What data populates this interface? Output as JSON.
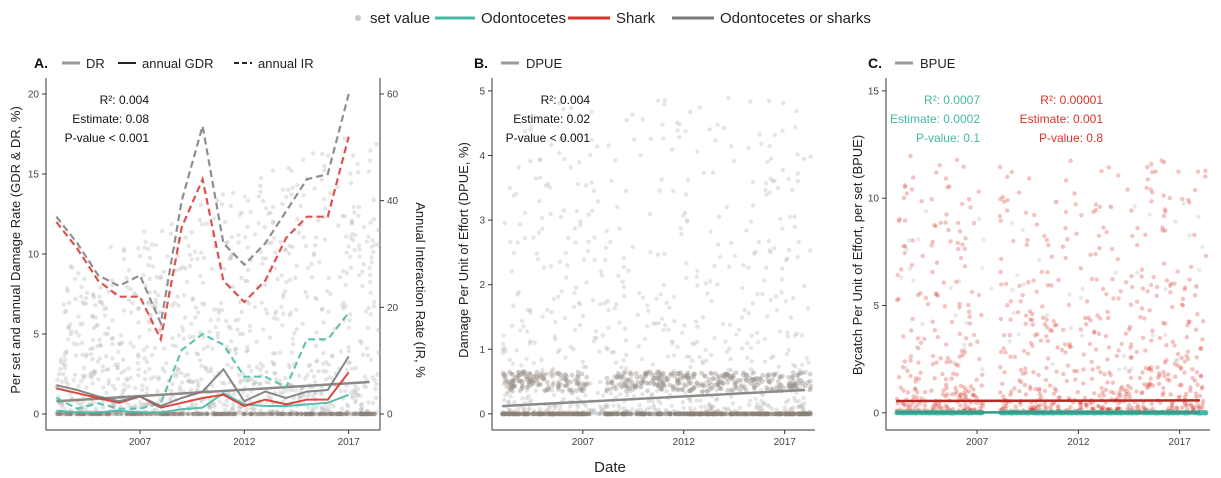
{
  "legend": {
    "set_value": "set value",
    "odontocetes": "Odontocetes",
    "shark": "Shark",
    "combined": "Odontocetes or sharks"
  },
  "colors": {
    "odontocetes": "#47b8a6",
    "shark": "#d9342b",
    "combined": "#7a7a7a",
    "points_gray": "#b5b5b5",
    "points_red": "#d9342b",
    "points_teal": "#47b8a6",
    "zero_points": "#8c8177",
    "trend_gray": "#8f8a86"
  },
  "x_axis_label": "Date",
  "chart_data": [
    {
      "panel": "A.",
      "type": "line",
      "legend_entries": [
        "DR",
        "annual GDR",
        "annual IR"
      ],
      "ylabel": "Per set and annual Damage Rate (GDR & DR, %)",
      "ylabel_right": "Annual Interaction Rate (IR, %",
      "xlim": [
        2002.5,
        2018.5
      ],
      "ylim": [
        -1,
        21
      ],
      "y_ticks": [
        0,
        5,
        10,
        15,
        20
      ],
      "y2_ticks": [
        0,
        20,
        40,
        60
      ],
      "x_ticks": [
        2007,
        2012,
        2017
      ],
      "stats": [
        "R²: 0.004",
        "Estimate: 0.08",
        "P-value < 0.001"
      ],
      "x": [
        2003,
        2004,
        2005,
        2006,
        2007,
        2008,
        2009,
        2010,
        2011,
        2012,
        2013,
        2014,
        2015,
        2016,
        2017
      ],
      "gdr_series": [
        {
          "name": "Odontocetes",
          "values": [
            0.2,
            0.1,
            0.1,
            0.2,
            0.1,
            0.1,
            0.3,
            0.4,
            1.3,
            0.6,
            0.5,
            0.5,
            0.6,
            0.7,
            1.2
          ]
        },
        {
          "name": "Shark",
          "values": [
            1.6,
            1.3,
            1.0,
            0.7,
            1.1,
            0.4,
            0.7,
            1.0,
            1.2,
            0.5,
            0.9,
            0.6,
            0.9,
            0.9,
            2.6
          ]
        },
        {
          "name": "Odontocetes or sharks",
          "values": [
            1.8,
            1.5,
            1.1,
            0.8,
            1.1,
            0.5,
            1.0,
            1.4,
            2.8,
            0.8,
            1.4,
            1.0,
            1.4,
            1.5,
            3.6
          ]
        }
      ],
      "ir_series": [
        {
          "name": "Odontocetes",
          "values": [
            3,
            1,
            2,
            1,
            1,
            2,
            12,
            15,
            13,
            7,
            7,
            5,
            14,
            14,
            19
          ]
        },
        {
          "name": "Shark",
          "values": [
            36,
            31,
            25,
            22,
            22,
            14,
            35,
            44,
            25,
            21,
            25,
            33,
            37,
            37,
            52
          ]
        },
        {
          "name": "Odontocetes or sharks",
          "values": [
            37,
            32,
            26,
            24,
            26,
            17,
            40,
            54,
            32,
            28,
            32,
            38,
            44,
            45,
            60
          ]
        }
      ],
      "trend": {
        "x": [
          2003,
          2018
        ],
        "y": [
          0.8,
          2.0
        ]
      },
      "points_ymax": 18
    },
    {
      "panel": "B.",
      "type": "scatter",
      "legend_entries": [
        "DPUE"
      ],
      "ylabel": "Damage Per Unit of Effort (DPUE, %)",
      "xlim": [
        2002.5,
        2018.5
      ],
      "ylim": [
        -0.25,
        5.2
      ],
      "y_ticks": [
        0,
        1,
        2,
        3,
        4,
        5
      ],
      "x_ticks": [
        2007,
        2012,
        2017
      ],
      "stats": [
        "R²: 0.004",
        "Estimate: 0.02",
        "P-value < 0.001"
      ],
      "trend": {
        "x": [
          2003,
          2018
        ],
        "y": [
          0.12,
          0.37
        ]
      },
      "points_ymax": 4.9
    },
    {
      "panel": "C.",
      "type": "scatter",
      "legend_entries": [
        "BPUE"
      ],
      "ylabel": "Bycatch Per Unit of Effort, per set (BPUE)",
      "xlim": [
        2002.5,
        2018.5
      ],
      "ylim": [
        -0.8,
        15.6
      ],
      "y_ticks": [
        0,
        5,
        10,
        15
      ],
      "x_ticks": [
        2007,
        2012,
        2017
      ],
      "stats_odontocetes": [
        "R²: 0.0007",
        "Estimate: 0.0002",
        "P-value: 0.1"
      ],
      "stats_shark": [
        "R²: 0.00001",
        "Estimate: 0.001",
        "P-value: 0.8"
      ],
      "trend": {
        "x": [
          2003,
          2018
        ],
        "y": [
          0.55,
          0.58
        ]
      },
      "points_ymax": 15
    }
  ]
}
